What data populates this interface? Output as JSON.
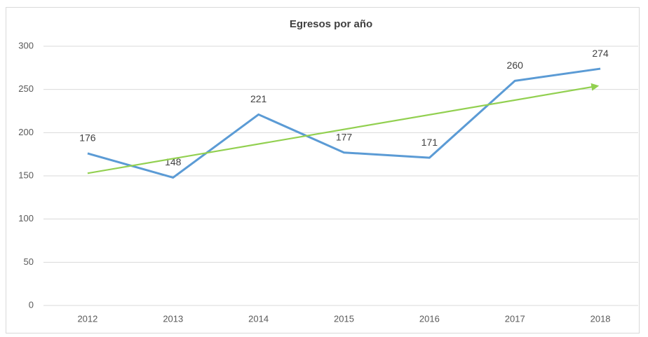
{
  "chart_data": {
    "type": "line",
    "title": "Egresos por año",
    "categories": [
      "2012",
      "2013",
      "2014",
      "2015",
      "2016",
      "2017",
      "2018"
    ],
    "series": [
      {
        "color": "#5b9bd5",
        "values": [
          176,
          148,
          221,
          177,
          171,
          260,
          274
        ]
      }
    ],
    "trend": {
      "color": "#92d050",
      "values": [
        153,
        254
      ]
    },
    "ylim": [
      0,
      300
    ],
    "yticks": [
      0,
      50,
      100,
      150,
      200,
      250,
      300
    ],
    "grid": true,
    "data_labels": true
  }
}
